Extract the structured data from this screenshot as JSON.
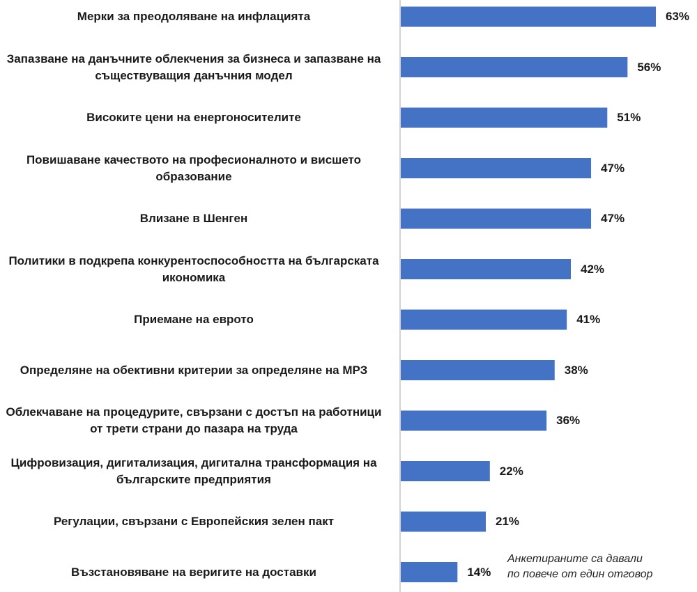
{
  "chart_data": {
    "type": "bar",
    "orientation": "horizontal",
    "categories": [
      "Мерки за преодоляване на инфлацията",
      "Запазване на данъчните облекчения за бизнеса и запазване на съществуващия данъчния модел",
      "Високите цени на енергоносителите",
      "Повишаване качеството на професионалното и висшето образование",
      "Влизане в Шенген",
      "Политики в подкрепа конкурентоспособността на българската икономика",
      "Приемане на еврото",
      "Определяне на обективни критерии за определяне на МРЗ",
      "Облекчаване на процедурите, свързани с достъп на работници от трети страни до пазара на труда",
      "Цифровизация, дигитализация, дигитална трансформация на българските предприятия",
      "Регулации, свързани с Европейския зелен пакт",
      "Възстановяване на веригите на доставки"
    ],
    "values": [
      63,
      56,
      51,
      47,
      47,
      42,
      41,
      38,
      36,
      22,
      21,
      14
    ],
    "value_labels": [
      "63%",
      "56%",
      "51%",
      "47%",
      "47%",
      "42%",
      "41%",
      "38%",
      "36%",
      "22%",
      "21%",
      "14%"
    ],
    "unit": "%",
    "xlim": [
      0,
      63
    ],
    "grid": false,
    "legend": "none",
    "bar_color": "#4472C4",
    "axis_line_color": "#a6a6a6",
    "note": "Анкетираните са давали\nпо повече от един отговор"
  }
}
